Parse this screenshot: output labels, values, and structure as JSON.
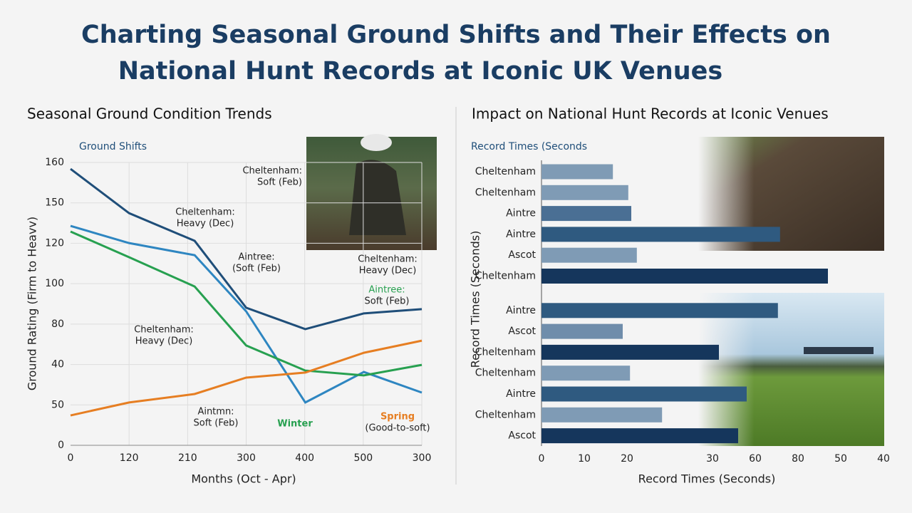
{
  "title": [
    "Charting Seasonal Ground Shifts and Their Effects on",
    "National Hunt Records at Iconic UK Venues"
  ],
  "chart_data": [
    {
      "type": "line",
      "title": "Seasonal Ground Condition Trends",
      "subtitle": "Ground Shifts",
      "x_label": "Months (Oct - Apr)",
      "y_label": "Ground Rating (Firm to Heavv)",
      "x": [
        0,
        100,
        212,
        300,
        401,
        501,
        600
      ],
      "xlim": [
        0,
        600
      ],
      "xticks": [
        0,
        {
          "value": 100,
          "label": "120"
        },
        {
          "value": 200,
          "label": "210"
        },
        300,
        400,
        500,
        {
          "value": 600,
          "label": "300"
        }
      ],
      "ylim": [
        0,
        140
      ],
      "yticks": [
        0,
        {
          "value": 20,
          "label": "50"
        },
        40,
        {
          "value": 60,
          "label": "80"
        },
        {
          "value": 80,
          "label": "100"
        },
        {
          "value": 100,
          "label": "120"
        },
        {
          "value": 120,
          "label": "150"
        },
        {
          "value": 140,
          "label": "160"
        }
      ],
      "grid": true,
      "series": [
        {
          "color": "#1f4e79",
          "values": [
            136.8,
            114.9,
            101.2,
            68.1,
            57.5,
            65.3,
            67.4
          ]
        },
        {
          "color": "#2e86c1",
          "values": [
            108.6,
            100.1,
            94.1,
            66.3,
            21.2,
            36.3,
            26.1
          ]
        },
        {
          "color": "#27a050",
          "values": [
            105.8,
            93.1,
            78.6,
            49.4,
            37.0,
            34.6,
            39.8
          ]
        },
        {
          "color": "#e67e22",
          "values": [
            14.8,
            21.2,
            25.4,
            33.5,
            36.0,
            45.8,
            51.8
          ]
        }
      ],
      "annotations": [
        {
          "lines": [
            "Cheltenham:",
            "Soft (Feb)"
          ]
        },
        {
          "lines": [
            "Cheltenham:",
            "Heavy (Dec)"
          ]
        },
        {
          "lines": [
            "Aintree:",
            "(Soft (Feb)"
          ]
        },
        {
          "lines": [
            "Cheltenham:",
            "Heavy (Dec)"
          ]
        },
        {
          "lines": [
            "Aintree:",
            "Soft (Feb)"
          ],
          "color": "#27a050"
        },
        {
          "lines": [
            "Cheltenham:",
            "Heavy (Dec)"
          ]
        },
        {
          "lines": [
            "Aintmn:",
            "Soft (Feb)"
          ]
        },
        {
          "lines": [
            "Winter"
          ],
          "color": "#27a050"
        },
        {
          "lines": [
            "Spring",
            "(Good-to-soft)"
          ],
          "color": "#e67e22"
        }
      ]
    },
    {
      "type": "hbar",
      "title": "Impact on National Hunt Records at Iconic Venues",
      "subtitle": "Record Times (Seconds",
      "x_label": "Record Times (Seconds)",
      "y_label": "Record Times (Seconds)",
      "categories": [
        "Cheltenham",
        "Cheltenham",
        "Aintre",
        "Aintre",
        "Ascot",
        "Cheltenham",
        "Aintre",
        "Ascot",
        "Cheltenham",
        "Cheltenham",
        "Aintre",
        "Cheltenham",
        "Ascot"
      ],
      "values": [
        16.7,
        20.3,
        21,
        55.8,
        22.3,
        67,
        55.3,
        19,
        41.5,
        20.7,
        48,
        28.2,
        46
      ],
      "colors": [
        "#7f9bb5",
        "#7f9bb5",
        "#4a6f94",
        "#2f5a80",
        "#7f9bb5",
        "#15365c",
        "#2f5a80",
        "#6f8dab",
        "#15365c",
        "#7f9bb5",
        "#2f5a80",
        "#7f9bb5",
        "#15365c"
      ],
      "xlim": [
        0,
        80
      ],
      "xticks": [
        0,
        10,
        20,
        {
          "value": 40,
          "label": "30"
        },
        {
          "value": 50,
          "label": "60"
        },
        {
          "value": 60,
          "label": "80"
        },
        {
          "value": 70,
          "label": "50"
        },
        {
          "value": 80,
          "label": "40"
        }
      ]
    }
  ]
}
